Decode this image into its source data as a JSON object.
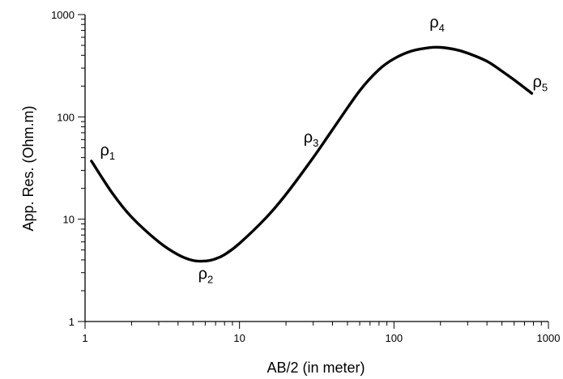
{
  "chart_data": {
    "type": "line",
    "x_scale": "log",
    "y_scale": "log",
    "xlabel": "AB/2 (in meter)",
    "ylabel": "App. Res. (Ohm.m)",
    "xlim": [
      1,
      1000
    ],
    "ylim": [
      1,
      1000
    ],
    "grid": false,
    "x_ticks": [
      {
        "value": 1,
        "label": "1"
      },
      {
        "value": 10,
        "label": "10"
      },
      {
        "value": 100,
        "label": "100"
      },
      {
        "value": 1000,
        "label": "1000"
      }
    ],
    "y_ticks": [
      {
        "value": 1,
        "label": "1"
      },
      {
        "value": 10,
        "label": "10"
      },
      {
        "value": 100,
        "label": "100"
      },
      {
        "value": 1000,
        "label": "1000"
      }
    ],
    "series": [
      {
        "color": "#000000",
        "points": [
          {
            "x": 1.1,
            "y": 37
          },
          {
            "x": 1.5,
            "y": 18
          },
          {
            "x": 2.0,
            "y": 10.5
          },
          {
            "x": 3.0,
            "y": 6.0
          },
          {
            "x": 4.0,
            "y": 4.5
          },
          {
            "x": 5.0,
            "y": 3.95
          },
          {
            "x": 6.0,
            "y": 3.9
          },
          {
            "x": 7.0,
            "y": 4.1
          },
          {
            "x": 8.0,
            "y": 4.5
          },
          {
            "x": 10.0,
            "y": 5.8
          },
          {
            "x": 15.0,
            "y": 10.5
          },
          {
            "x": 20.0,
            "y": 17.5
          },
          {
            "x": 30.0,
            "y": 40
          },
          {
            "x": 40.0,
            "y": 75
          },
          {
            "x": 60.0,
            "y": 180
          },
          {
            "x": 80.0,
            "y": 290
          },
          {
            "x": 100.0,
            "y": 370
          },
          {
            "x": 130.0,
            "y": 440
          },
          {
            "x": 170.0,
            "y": 475
          },
          {
            "x": 200.0,
            "y": 478
          },
          {
            "x": 250.0,
            "y": 455
          },
          {
            "x": 300.0,
            "y": 420
          },
          {
            "x": 400.0,
            "y": 350
          },
          {
            "x": 500.0,
            "y": 280
          },
          {
            "x": 600.0,
            "y": 230
          },
          {
            "x": 780.0,
            "y": 170
          }
        ]
      }
    ],
    "annotations": [
      {
        "symbol": "ρ",
        "sub": "1",
        "x": 1.25,
        "y": 42
      },
      {
        "symbol": "ρ",
        "sub": "2",
        "x": 5.4,
        "y": 2.6
      },
      {
        "symbol": "ρ",
        "sub": "3",
        "x": 26,
        "y": 56
      },
      {
        "symbol": "ρ",
        "sub": "4",
        "x": 170,
        "y": 750
      },
      {
        "symbol": "ρ",
        "sub": "5",
        "x": 790,
        "y": 195
      }
    ]
  }
}
